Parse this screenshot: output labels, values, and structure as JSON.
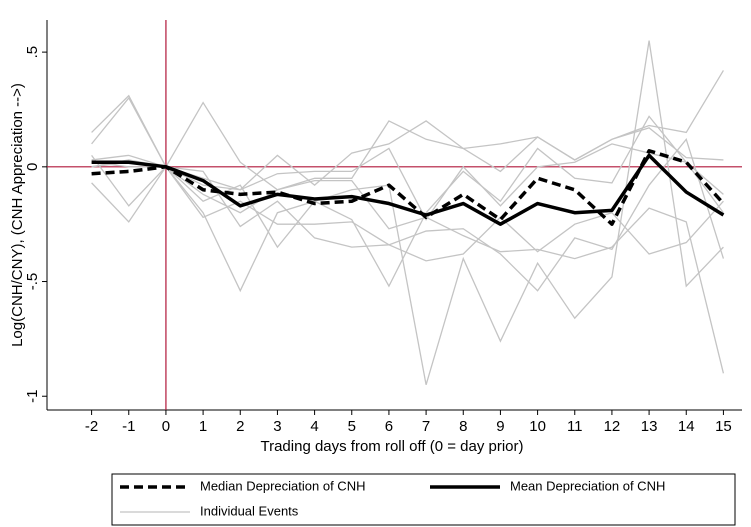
{
  "chart_data": {
    "type": "line",
    "x_label": "Trading days from roll off (0 = day prior)",
    "y_label": "Log(CNH/CNY), (CNH Appreciation -->)",
    "x": [
      -2,
      -1,
      0,
      1,
      2,
      3,
      4,
      5,
      6,
      7,
      8,
      9,
      10,
      11,
      12,
      13,
      14,
      15
    ],
    "xlim": [
      -3.2,
      15.5
    ],
    "xticks": [
      -2,
      -1,
      0,
      1,
      2,
      3,
      4,
      5,
      6,
      7,
      8,
      9,
      10,
      11,
      12,
      13,
      14,
      15
    ],
    "ylim": [
      -1.06,
      0.64
    ],
    "yticks": [
      {
        "value": -1,
        "label": "-1"
      },
      {
        "value": -0.5,
        "label": "-.5"
      },
      0,
      {
        "value": 0.5,
        "label": ".5"
      }
    ],
    "xline": 0,
    "yline": 0,
    "refline_color": "#b0173a",
    "series": [
      {
        "name": "Median Depreciation of CNH",
        "color": "#000000",
        "dash": true,
        "values": [
          -0.03,
          -0.02,
          0,
          -0.1,
          -0.12,
          -0.11,
          -0.16,
          -0.15,
          -0.08,
          -0.22,
          -0.12,
          -0.23,
          -0.05,
          -0.1,
          -0.25,
          0.07,
          0.02,
          -0.16
        ]
      },
      {
        "name": "Mean Depreciation of CNH",
        "color": "#000000",
        "dash": false,
        "values": [
          0.02,
          0.02,
          0,
          -0.06,
          -0.17,
          -0.12,
          -0.14,
          -0.13,
          -0.16,
          -0.21,
          -0.16,
          -0.25,
          -0.16,
          -0.2,
          -0.19,
          0.05,
          -0.11,
          -0.21
        ]
      }
    ],
    "individual_events": {
      "name": "Individual Events",
      "color": "#c4c4c4",
      "lines": [
        [
          0.15,
          0.31,
          0,
          0.28,
          0.02,
          -0.1,
          -0.05,
          -0.05,
          0.2,
          0.12,
          0.08,
          -0.02,
          0.13,
          0.03,
          0.12,
          0.18,
          0.15,
          0.42
        ],
        [
          0.1,
          0.3,
          0,
          -0.2,
          -0.54,
          -0.2,
          -0.15,
          -0.1,
          -0.08,
          -0.95,
          -0.4,
          -0.76,
          -0.42,
          -0.66,
          -0.48,
          0.55,
          -0.52,
          -0.35
        ],
        [
          0.05,
          -0.17,
          0,
          -0.15,
          -0.08,
          -0.35,
          -0.15,
          -0.23,
          -0.52,
          -0.2,
          -0.02,
          -0.15,
          0.08,
          -0.05,
          -0.07,
          0.22,
          0.02,
          -0.12
        ],
        [
          -0.07,
          -0.24,
          0,
          -0.02,
          -0.26,
          -0.15,
          -0.31,
          -0.35,
          -0.34,
          -0.28,
          -0.27,
          -0.38,
          -0.54,
          -0.31,
          -0.36,
          -0.08,
          0.12,
          -0.4
        ],
        [
          0,
          0.02,
          0,
          -0.05,
          -0.1,
          0.05,
          -0.08,
          0.06,
          0.1,
          0.2,
          0.08,
          0.1,
          0.13,
          0.03,
          0.12,
          0.17,
          0.04,
          0.03
        ],
        [
          0.03,
          0.05,
          0,
          -0.12,
          -0.2,
          -0.1,
          -0.06,
          -0.06,
          -0.27,
          -0.22,
          -0.3,
          -0.37,
          -0.36,
          -0.4,
          -0.35,
          -0.18,
          -0.24,
          -0.9
        ],
        [
          0.02,
          0,
          0,
          -0.22,
          -0.15,
          -0.25,
          -0.25,
          -0.24,
          -0.34,
          -0.41,
          -0.38,
          -0.22,
          -0.37,
          -0.25,
          -0.2,
          -0.38,
          -0.33,
          -0.15
        ],
        [
          0,
          0.03,
          0,
          -0.08,
          -0.1,
          -0.03,
          -0.02,
          -0.02,
          0.08,
          -0.23,
          0,
          -0.17,
          0,
          0.02,
          0.1,
          0.06,
          0.02,
          -0.2
        ]
      ]
    }
  }
}
